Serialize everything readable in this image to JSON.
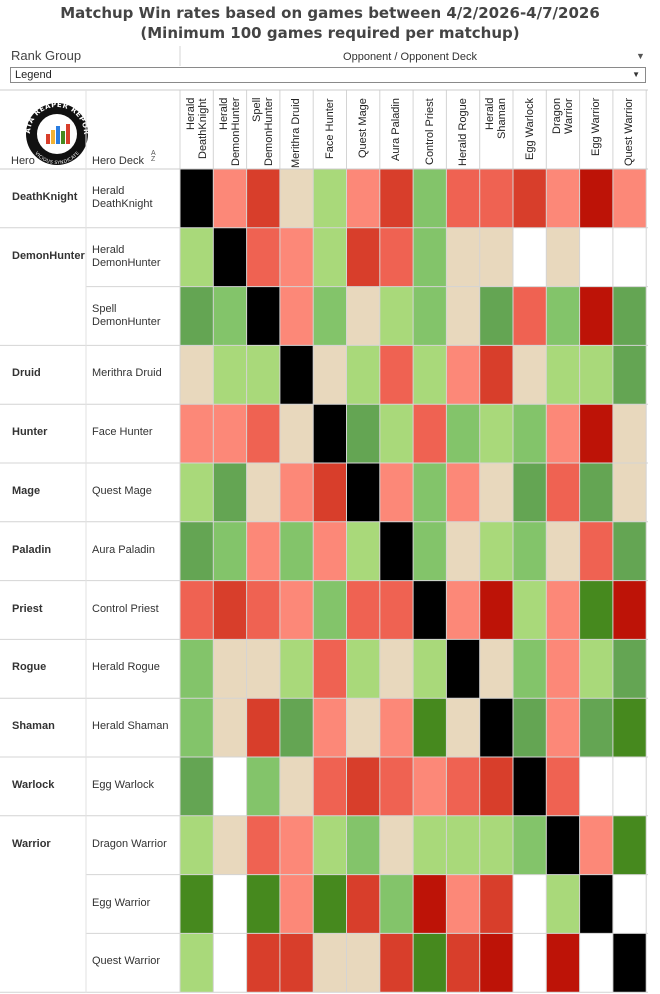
{
  "title_line1": "Matchup Win rates based on games between 4/2/2026-4/7/2026",
  "title_line2": "(Minimum 100 games required per matchup)",
  "filters": {
    "rank_group_label": "Rank Group",
    "opponent_label": "Opponent / Opponent Deck",
    "legend_value": "Legend"
  },
  "logo": {
    "top_text": "DATA REAPER REPORT",
    "bottom_text": "VICIOUS SYNDICATE"
  },
  "headers": {
    "hero": "Hero",
    "hero_deck": "Hero Deck"
  },
  "colors": {
    "black": "#000000",
    "beige": "#e8d8bd",
    "light_green": "#a9d97a",
    "green": "#83c46a",
    "mid_green": "#64a553",
    "dark_green": "#46891e",
    "salmon": "#fc8878",
    "red_orange": "#ef6252",
    "red": "#d83e2b",
    "dark_red": "#bd1307",
    "none": "#ffffff"
  },
  "chart_data": {
    "type": "heatmap",
    "value_scale": "win rate (color category only; no numeric labels shown)",
    "columns": [
      "Herald DeathKnight",
      "Herald DemonHunter",
      "Spell DemonHunter",
      "Merithra Druid",
      "Face Hunter",
      "Quest Mage",
      "Aura Paladin",
      "Control Priest",
      "Herald Rogue",
      "Herald Shaman",
      "Egg Warlock",
      "Dragon Warrior",
      "Egg Warrior",
      "Quest Warrior"
    ],
    "groups": [
      {
        "hero": "DeathKnight",
        "decks": [
          "Herald\nDeathKnight"
        ]
      },
      {
        "hero": "DemonHunter",
        "decks": [
          "Herald\nDemonHunter",
          "Spell\nDemonHunter"
        ]
      },
      {
        "hero": "Druid",
        "decks": [
          "Merithra Druid"
        ]
      },
      {
        "hero": "Hunter",
        "decks": [
          "Face Hunter"
        ]
      },
      {
        "hero": "Mage",
        "decks": [
          "Quest Mage"
        ]
      },
      {
        "hero": "Paladin",
        "decks": [
          "Aura Paladin"
        ]
      },
      {
        "hero": "Priest",
        "decks": [
          "Control Priest"
        ]
      },
      {
        "hero": "Rogue",
        "decks": [
          "Herald Rogue"
        ]
      },
      {
        "hero": "Shaman",
        "decks": [
          "Herald Shaman"
        ]
      },
      {
        "hero": "Warlock",
        "decks": [
          "Egg Warlock"
        ]
      },
      {
        "hero": "Warrior",
        "decks": [
          "Dragon Warrior",
          "Egg Warrior",
          "Quest Warrior"
        ]
      }
    ],
    "cells": [
      [
        "black",
        "salmon",
        "red",
        "beige",
        "light_green",
        "salmon",
        "red",
        "green",
        "red_orange",
        "red_orange",
        "red",
        "salmon",
        "dark_red",
        "salmon"
      ],
      [
        "light_green",
        "black",
        "red_orange",
        "salmon",
        "light_green",
        "red",
        "red_orange",
        "green",
        "beige",
        "beige",
        "none",
        "beige",
        "none",
        "none"
      ],
      [
        "mid_green",
        "green",
        "black",
        "salmon",
        "green",
        "beige",
        "light_green",
        "green",
        "beige",
        "mid_green",
        "red_orange",
        "green",
        "dark_red",
        "mid_green"
      ],
      [
        "beige",
        "light_green",
        "light_green",
        "black",
        "beige",
        "light_green",
        "red_orange",
        "light_green",
        "salmon",
        "red",
        "beige",
        "light_green",
        "light_green",
        "mid_green"
      ],
      [
        "salmon",
        "salmon",
        "red_orange",
        "beige",
        "black",
        "mid_green",
        "light_green",
        "red_orange",
        "green",
        "light_green",
        "green",
        "salmon",
        "dark_red",
        "beige"
      ],
      [
        "light_green",
        "mid_green",
        "beige",
        "salmon",
        "red",
        "black",
        "salmon",
        "green",
        "salmon",
        "beige",
        "mid_green",
        "red_orange",
        "mid_green",
        "beige"
      ],
      [
        "mid_green",
        "green",
        "salmon",
        "green",
        "salmon",
        "light_green",
        "black",
        "green",
        "beige",
        "light_green",
        "green",
        "beige",
        "red_orange",
        "mid_green"
      ],
      [
        "red_orange",
        "red",
        "red_orange",
        "salmon",
        "green",
        "red_orange",
        "red_orange",
        "black",
        "salmon",
        "dark_red",
        "light_green",
        "salmon",
        "dark_green",
        "dark_red"
      ],
      [
        "green",
        "beige",
        "beige",
        "light_green",
        "red_orange",
        "light_green",
        "beige",
        "light_green",
        "black",
        "beige",
        "green",
        "salmon",
        "light_green",
        "mid_green"
      ],
      [
        "green",
        "beige",
        "red",
        "mid_green",
        "salmon",
        "beige",
        "salmon",
        "dark_green",
        "beige",
        "black",
        "mid_green",
        "salmon",
        "mid_green",
        "dark_green"
      ],
      [
        "mid_green",
        "none",
        "green",
        "beige",
        "red_orange",
        "red",
        "red_orange",
        "salmon",
        "red_orange",
        "red",
        "black",
        "red_orange",
        "none",
        "none"
      ],
      [
        "light_green",
        "beige",
        "red_orange",
        "salmon",
        "light_green",
        "green",
        "beige",
        "light_green",
        "light_green",
        "light_green",
        "green",
        "black",
        "salmon",
        "dark_green"
      ],
      [
        "dark_green",
        "none",
        "dark_green",
        "salmon",
        "dark_green",
        "red",
        "green",
        "dark_red",
        "salmon",
        "red",
        "none",
        "light_green",
        "black",
        "none"
      ],
      [
        "light_green",
        "none",
        "red",
        "red",
        "beige",
        "beige",
        "red",
        "dark_green",
        "red",
        "dark_red",
        "none",
        "dark_red",
        "none",
        "black"
      ]
    ]
  }
}
